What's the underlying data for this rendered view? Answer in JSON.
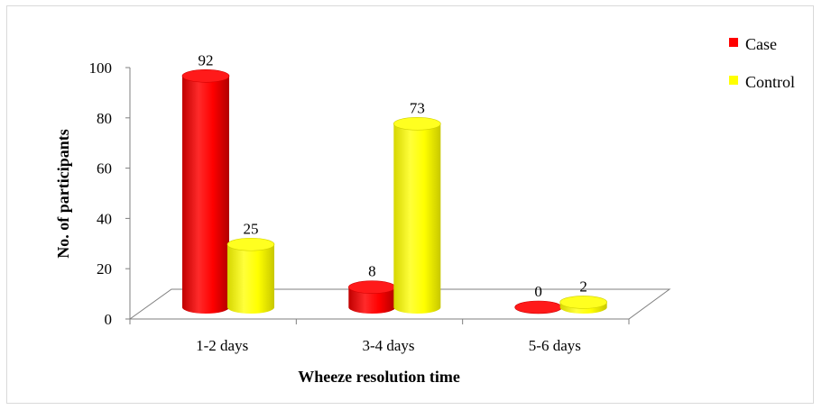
{
  "chart_data": {
    "type": "bar",
    "categories": [
      "1-2 days",
      "3-4 days",
      "5-6 days"
    ],
    "series": [
      {
        "name": "Case",
        "values": [
          92,
          8,
          0
        ],
        "color": "#ff0000"
      },
      {
        "name": "Control",
        "values": [
          25,
          73,
          2
        ],
        "color": "#ffff00"
      }
    ],
    "xlabel": "Wheeze resolution time",
    "ylabel": "No. of participants",
    "ylim": [
      0,
      100
    ],
    "yticks": [
      0,
      20,
      40,
      60,
      80,
      100
    ],
    "legend_position": "top-right",
    "grid": false,
    "style": "3d-cylinder"
  }
}
